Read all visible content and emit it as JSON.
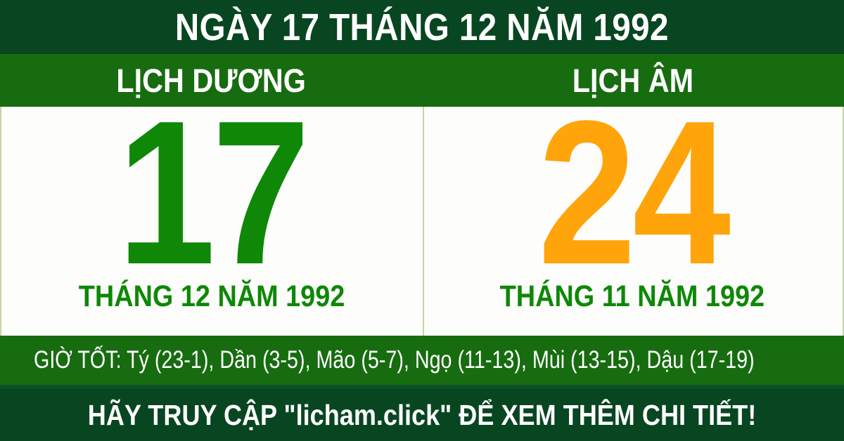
{
  "header": {
    "title": "NGÀY 17 THÁNG 12 NĂM 1992"
  },
  "columns": {
    "solar": {
      "label": "LỊCH DƯƠNG",
      "day": "17",
      "month_year": "THÁNG 12 NĂM 1992"
    },
    "lunar": {
      "label": "LỊCH ÂM",
      "day": "24",
      "month_year": "THÁNG 11 NĂM 1992"
    }
  },
  "good_hours": {
    "text": "GIỜ TỐT: Tý (23-1), Dần (3-5), Mão (5-7), Ngọ (11-13), Mùi (13-15), Dậu (17-19)"
  },
  "footer": {
    "text": "HÃY TRUY CẬP \"licham.click\" ĐỂ XEM THÊM CHI TIẾT!"
  },
  "colors": {
    "dark_green": "#084621",
    "bright_green": "#176C10",
    "day_green": "#0E8806",
    "day_orange": "#FFA40B",
    "divider_green": "#C3D6A0",
    "text_white": "#FFFFFF"
  }
}
